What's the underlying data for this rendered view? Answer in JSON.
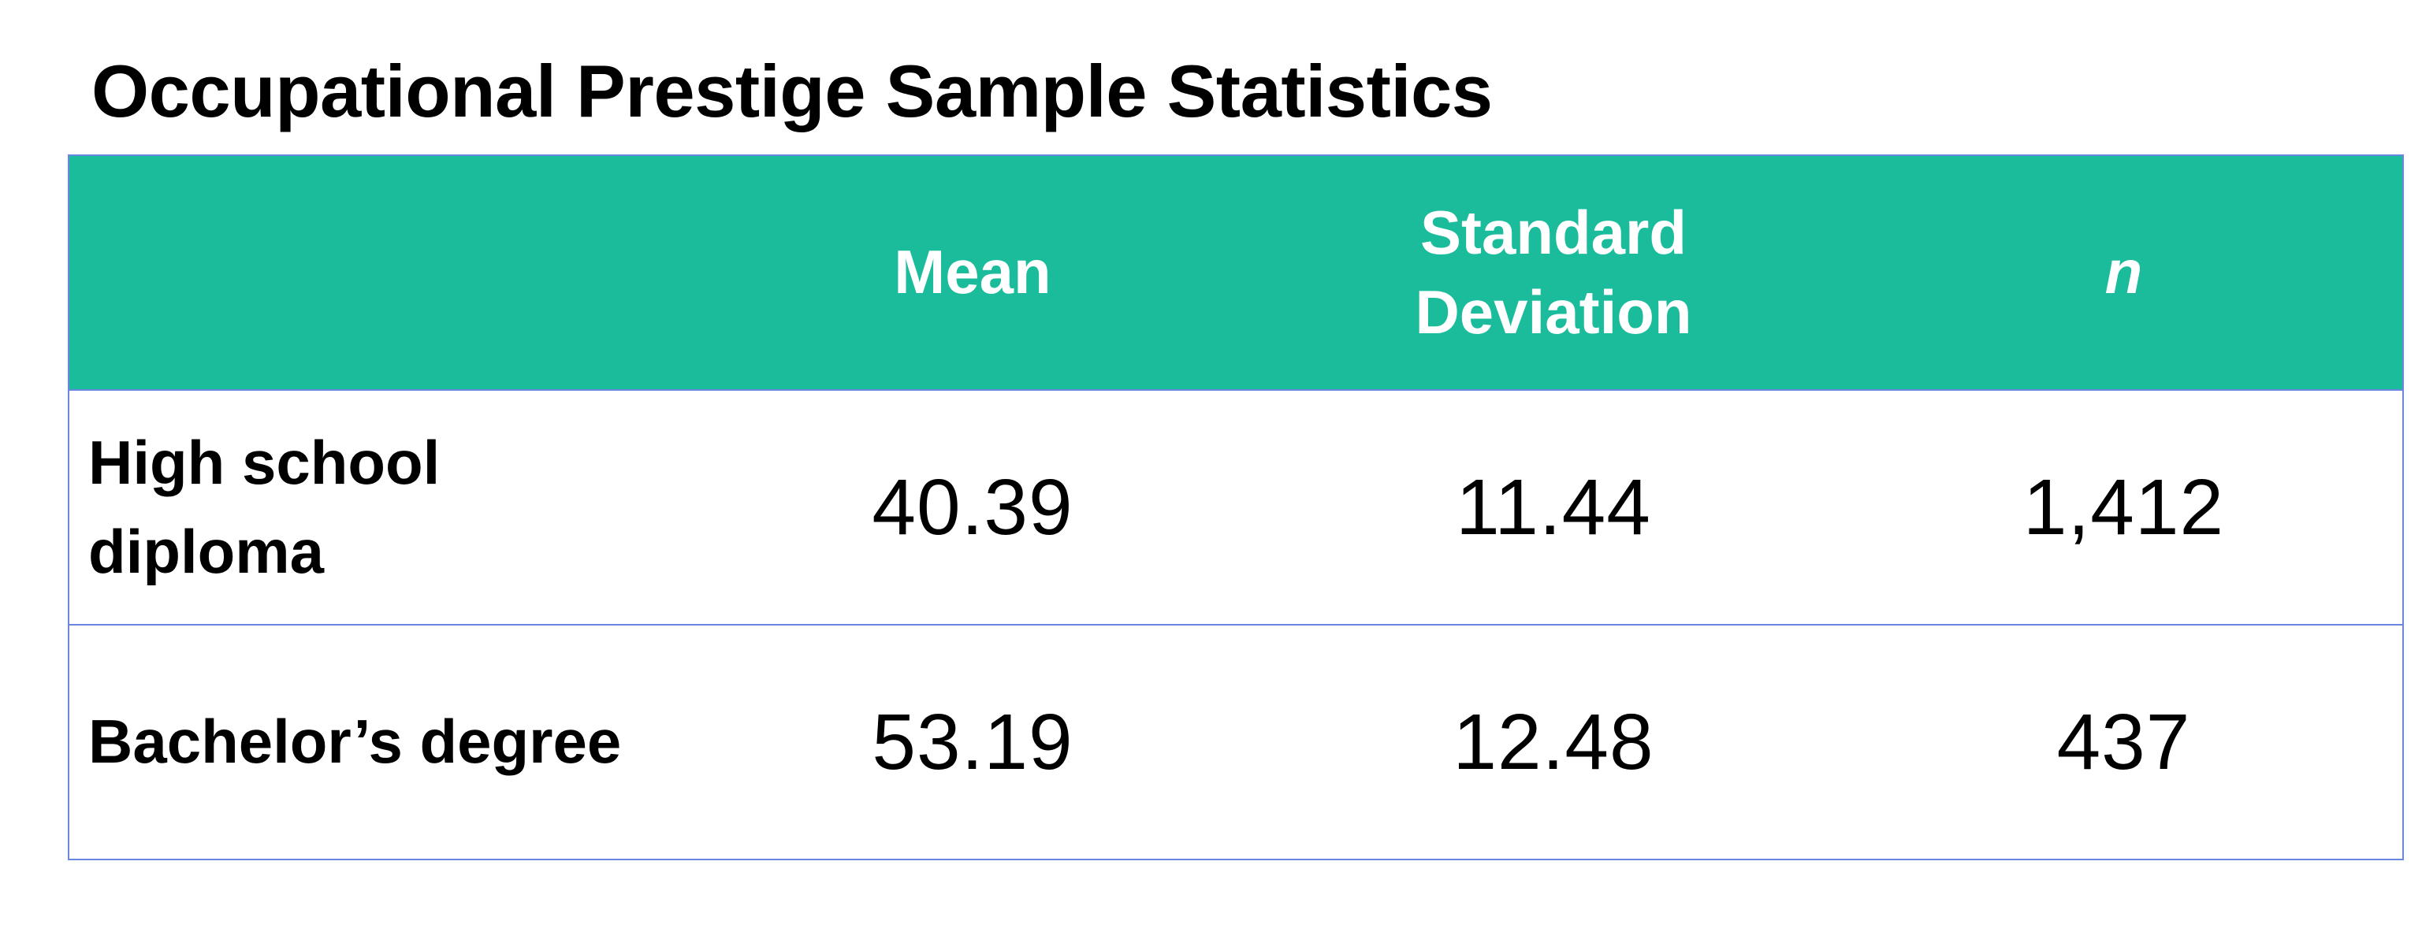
{
  "title": "Occupational Prestige Sample Statistics",
  "colors": {
    "header_bg": "#1abc9c",
    "header_text": "#ffffff",
    "border": "#6b86e0",
    "body_text": "#000000"
  },
  "table": {
    "headers": [
      "",
      "Mean",
      "Standard Deviation",
      "n"
    ],
    "rows": [
      {
        "label": "High school diploma",
        "values": [
          "40.39",
          "11.44",
          "1,412"
        ]
      },
      {
        "label": "Bachelor’s degree",
        "values": [
          "53.19",
          "12.48",
          "437"
        ]
      }
    ]
  }
}
